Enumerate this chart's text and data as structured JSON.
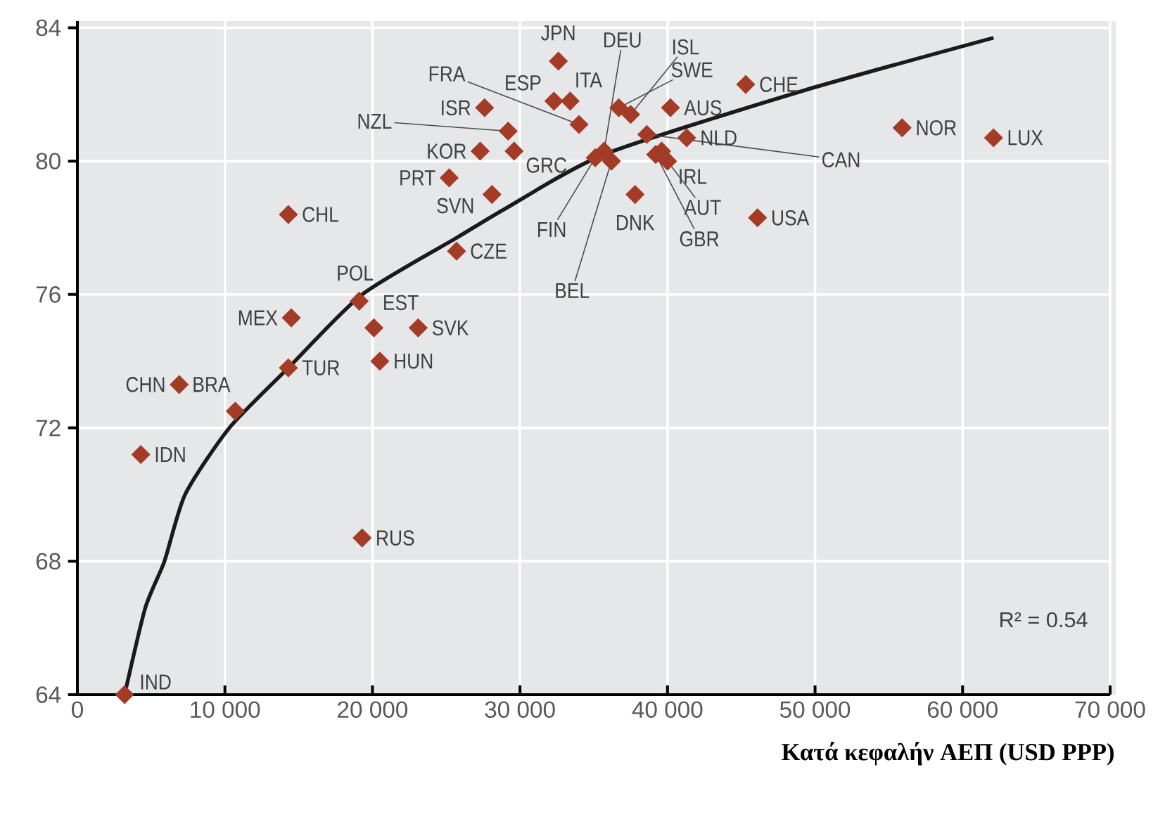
{
  "chart_data": {
    "type": "scatter",
    "xlabel": "Κατά κεφαλήν ΑΕΠ (USD PPP)",
    "xlim": [
      0,
      70000
    ],
    "ylim": [
      64,
      84.2
    ],
    "xticks": [
      0,
      {
        "value": 10000,
        "label": "10 000"
      },
      {
        "value": 20000,
        "label": "20 000"
      },
      {
        "value": 30000,
        "label": "30 000"
      },
      {
        "value": 40000,
        "label": "40 000"
      },
      {
        "value": 50000,
        "label": "50 000"
      },
      {
        "value": 60000,
        "label": "60 000"
      },
      {
        "value": 70000,
        "label": "70 000"
      }
    ],
    "yticks": [
      64,
      68,
      72,
      76,
      80,
      84
    ],
    "grid": true,
    "series": [
      {
        "type": "scatter",
        "color": "#a33b26",
        "marker": "diamond",
        "x": [
          3200,
          4300,
          6900,
          10700,
          14300,
          14500,
          14300,
          19100,
          20100,
          23100,
          20500,
          19300,
          25200,
          27300,
          28100,
          25700,
          27600,
          29200,
          29600,
          32600,
          32300,
          33400,
          34000,
          36700,
          37500,
          35700,
          36200,
          35100,
          37800,
          39600,
          40000,
          39200,
          38600,
          40200,
          41300,
          45300,
          46100,
          55900,
          62100
        ],
        "values": [
          64.0,
          71.2,
          73.3,
          72.5,
          73.8,
          75.3,
          78.4,
          75.8,
          75.0,
          75.0,
          74.0,
          68.7,
          79.5,
          80.3,
          79.0,
          77.3,
          81.6,
          80.9,
          80.3,
          83.0,
          81.8,
          81.8,
          81.1,
          81.6,
          81.4,
          80.3,
          80.0,
          80.1,
          79.0,
          80.3,
          80.0,
          80.2,
          80.8,
          81.6,
          80.7,
          82.3,
          78.3,
          81.0,
          80.7
        ]
      },
      {
        "type": "line",
        "color": "#1a1a1a",
        "x": [
          3200,
          4600,
          5900,
          7300,
          10300,
          14300,
          19300,
          25700,
          29100,
          35700,
          49100,
          62100
        ],
        "values": [
          64.0,
          66.6,
          68.0,
          70.0,
          72.0,
          73.8,
          76.0,
          77.7,
          78.6,
          80.2,
          82.1,
          83.7
        ]
      }
    ],
    "annotations": [
      {
        "text": "IND",
        "x": 3200,
        "y": 64.0
      },
      {
        "text": "IDN",
        "x": 4300,
        "y": 71.2
      },
      {
        "text": "CHN",
        "x": 6900,
        "y": 73.3
      },
      {
        "text": "BRA",
        "x": 10700,
        "y": 72.5
      },
      {
        "text": "TUR",
        "x": 14300,
        "y": 73.8
      },
      {
        "text": "MEX",
        "x": 14500,
        "y": 75.3
      },
      {
        "text": "CHL",
        "x": 14300,
        "y": 78.4
      },
      {
        "text": "POL",
        "x": 19100,
        "y": 75.8
      },
      {
        "text": "EST",
        "x": 20100,
        "y": 75.0
      },
      {
        "text": "SVK",
        "x": 23100,
        "y": 75.0
      },
      {
        "text": "HUN",
        "x": 20500,
        "y": 74.0
      },
      {
        "text": "RUS",
        "x": 19300,
        "y": 68.7
      },
      {
        "text": "PRT",
        "x": 25200,
        "y": 79.5
      },
      {
        "text": "KOR",
        "x": 27300,
        "y": 80.3
      },
      {
        "text": "SVN",
        "x": 28100,
        "y": 79.0
      },
      {
        "text": "CZE",
        "x": 25700,
        "y": 77.3
      },
      {
        "text": "ISR",
        "x": 27600,
        "y": 81.6
      },
      {
        "text": "NZL",
        "x": 29200,
        "y": 80.9
      },
      {
        "text": "GRC",
        "x": 29600,
        "y": 80.3
      },
      {
        "text": "JPN",
        "x": 32600,
        "y": 83.0
      },
      {
        "text": "ESP",
        "x": 32300,
        "y": 81.8
      },
      {
        "text": "ITA",
        "x": 33400,
        "y": 81.8
      },
      {
        "text": "FRA",
        "x": 34000,
        "y": 81.1
      },
      {
        "text": "SWE",
        "x": 36700,
        "y": 81.6
      },
      {
        "text": "ISL",
        "x": 37500,
        "y": 81.4
      },
      {
        "text": "DEU",
        "x": 35700,
        "y": 80.3
      },
      {
        "text": "BEL",
        "x": 36200,
        "y": 80.0
      },
      {
        "text": "FIN",
        "x": 35100,
        "y": 80.1
      },
      {
        "text": "DNK",
        "x": 37800,
        "y": 79.0
      },
      {
        "text": "IRL",
        "x": 39600,
        "y": 80.3
      },
      {
        "text": "AUT",
        "x": 40000,
        "y": 80.0
      },
      {
        "text": "GBR",
        "x": 39200,
        "y": 80.2
      },
      {
        "text": "CAN",
        "x": 38600,
        "y": 80.8
      },
      {
        "text": "AUS",
        "x": 40200,
        "y": 81.6
      },
      {
        "text": "NLD",
        "x": 41300,
        "y": 80.7
      },
      {
        "text": "CHE",
        "x": 45300,
        "y": 82.3
      },
      {
        "text": "USA",
        "x": 46100,
        "y": 78.3
      },
      {
        "text": "NOR",
        "x": 55900,
        "y": 81.0
      },
      {
        "text": "LUX",
        "x": 62100,
        "y": 80.7
      },
      "R² = 0.54"
    ]
  }
}
